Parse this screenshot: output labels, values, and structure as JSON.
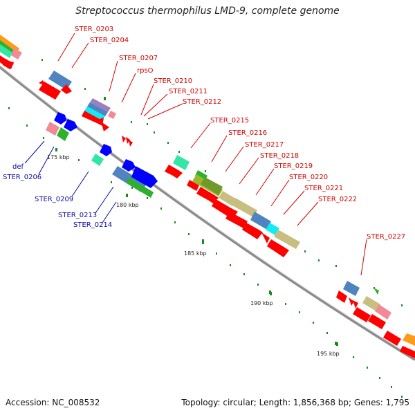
{
  "title": "Streptococcus thermophilus LMD-9, complete genome",
  "accession": "Accession: NC_008532",
  "topology": "Topology: circular; Length: 1,856,368 bp; Genes: 1,795",
  "colors": {
    "backbone": "#8c8c8c",
    "cds_red": "#ff0000",
    "cds_blue": "#0000ff",
    "steel_blue": "#4f84c0",
    "khaki": "#c8be80",
    "green": "#2db02d",
    "teal": "#33e6a6",
    "pink": "#f08a96",
    "orange": "#ff9a1a",
    "cyan": "#11ecf4",
    "tick_green": "#178a17",
    "label_red": "#d40000",
    "label_blue": "#0a0aa8"
  },
  "scale_labels": [
    "175 kbp",
    "180 kbp",
    "185 kbp",
    "190 kbp",
    "195 kbp"
  ],
  "gene_labels_top": [
    "STER_0203",
    "STER_0204",
    "STER_0207",
    "rpsO",
    "STER_0210",
    "STER_0211",
    "STER_0212",
    "STER_0215",
    "STER_0216",
    "STER_0217",
    "STER_0218",
    "STER_0219",
    "STER_0220",
    "STER_0221",
    "STER_0222",
    "STER_0227"
  ],
  "gene_labels_bottom": [
    "def",
    "STER_0206",
    "STER_0209",
    "STER_0213",
    "STER_0214"
  ]
}
